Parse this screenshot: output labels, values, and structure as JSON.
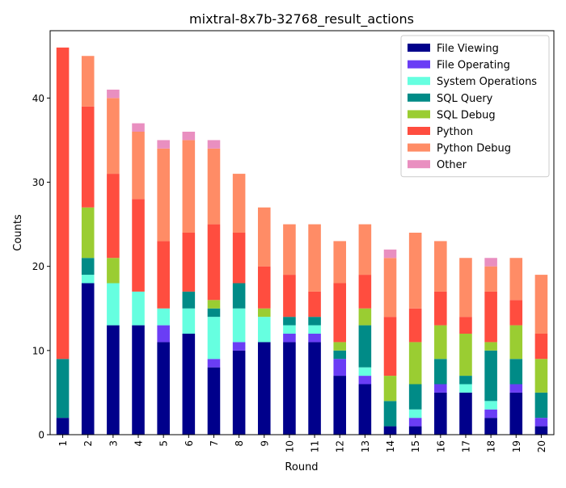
{
  "chart_data": {
    "type": "bar",
    "stacked": true,
    "title": "mixtral-8x7b-32768_result_actions",
    "xlabel": "Round",
    "ylabel": "Counts",
    "ylim": [
      0,
      48
    ],
    "yticks": [
      0,
      10,
      20,
      30,
      40
    ],
    "grid": false,
    "legend_position": "top-right",
    "categories": [
      "1",
      "2",
      "3",
      "4",
      "5",
      "6",
      "7",
      "8",
      "9",
      "10",
      "11",
      "12",
      "13",
      "14",
      "15",
      "16",
      "17",
      "18",
      "19",
      "20"
    ],
    "series": [
      {
        "name": "File Viewing",
        "color": "#00008b",
        "values": [
          2,
          18,
          13,
          13,
          11,
          12,
          8,
          10,
          11,
          11,
          11,
          7,
          6,
          1,
          1,
          5,
          5,
          2,
          5,
          1
        ]
      },
      {
        "name": "File Operating",
        "color": "#6a3df5",
        "values": [
          0,
          0,
          0,
          0,
          2,
          0,
          1,
          1,
          0,
          1,
          1,
          2,
          1,
          0,
          1,
          1,
          0,
          1,
          1,
          1
        ]
      },
      {
        "name": "System Operations",
        "color": "#66ffe0",
        "values": [
          0,
          1,
          5,
          4,
          2,
          3,
          5,
          4,
          3,
          1,
          1,
          0,
          1,
          0,
          1,
          0,
          1,
          1,
          0,
          0
        ]
      },
      {
        "name": "SQL Query",
        "color": "#008b87",
        "values": [
          7,
          2,
          0,
          0,
          0,
          2,
          1,
          3,
          0,
          1,
          1,
          1,
          5,
          3,
          3,
          3,
          1,
          6,
          3,
          3
        ]
      },
      {
        "name": "SQL Debug",
        "color": "#9acd32",
        "values": [
          0,
          6,
          3,
          0,
          0,
          0,
          1,
          0,
          1,
          0,
          0,
          1,
          2,
          3,
          5,
          4,
          5,
          1,
          4,
          4
        ]
      },
      {
        "name": "Python",
        "color": "#ff4d3f",
        "values": [
          37,
          12,
          10,
          11,
          8,
          7,
          9,
          6,
          5,
          5,
          3,
          7,
          4,
          7,
          4,
          4,
          2,
          6,
          3,
          3
        ]
      },
      {
        "name": "Python Debug",
        "color": "#ff8c66",
        "values": [
          0,
          6,
          9,
          8,
          11,
          11,
          9,
          7,
          7,
          6,
          8,
          5,
          6,
          7,
          9,
          6,
          7,
          3,
          5,
          7
        ]
      },
      {
        "name": "Other",
        "color": "#e98fc0",
        "values": [
          0,
          0,
          1,
          1,
          1,
          1,
          1,
          0,
          0,
          0,
          0,
          0,
          0,
          1,
          0,
          0,
          0,
          1,
          0,
          0
        ]
      }
    ]
  }
}
